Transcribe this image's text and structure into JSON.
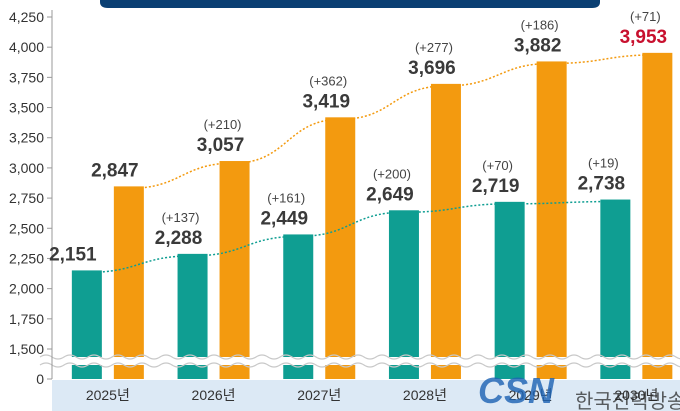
{
  "chart_data": {
    "type": "bar",
    "title": "",
    "xlabel": "",
    "ylabel": "",
    "categories": [
      "2025년",
      "2026년",
      "2027년",
      "2028년",
      "2029년",
      "2030년"
    ],
    "y_ticks": [
      "0",
      "1,500",
      "1,750",
      "2,000",
      "2,250",
      "2,500",
      "2,750",
      "3,000",
      "3,250",
      "3,500",
      "3,750",
      "4,000",
      "4,250"
    ],
    "ylim": [
      1500,
      4250
    ],
    "axis_break": true,
    "grid": false,
    "series": [
      {
        "color": "#0f9e92",
        "values": [
          2151,
          2288,
          2449,
          2649,
          2719,
          2738
        ],
        "value_labels": [
          "2,151",
          "2,288",
          "2,449",
          "2,649",
          "2,719",
          "2,738"
        ],
        "delta_labels": [
          "",
          "(+137)",
          "(+161)",
          "(+200)",
          "(+70)",
          "(+19)"
        ],
        "trendline_color": "#0f9e92"
      },
      {
        "color": "#f39a0f",
        "values": [
          2847,
          3057,
          3419,
          3696,
          3882,
          3953
        ],
        "value_labels": [
          "2,847",
          "3,057",
          "3,419",
          "3,696",
          "3,882",
          "3,953"
        ],
        "delta_labels": [
          "",
          "(+210)",
          "(+362)",
          "(+277)",
          "(+186)",
          "(+71)"
        ],
        "highlight_last_color": "#c8102e",
        "trendline_color": "#f39a0f"
      }
    ]
  },
  "colors": {
    "header_band": "#0a3f73",
    "x_band": "#dce9f5",
    "axis": "#999999"
  },
  "watermark": {
    "logo_text": "CSN",
    "text": "한국전력방송"
  }
}
